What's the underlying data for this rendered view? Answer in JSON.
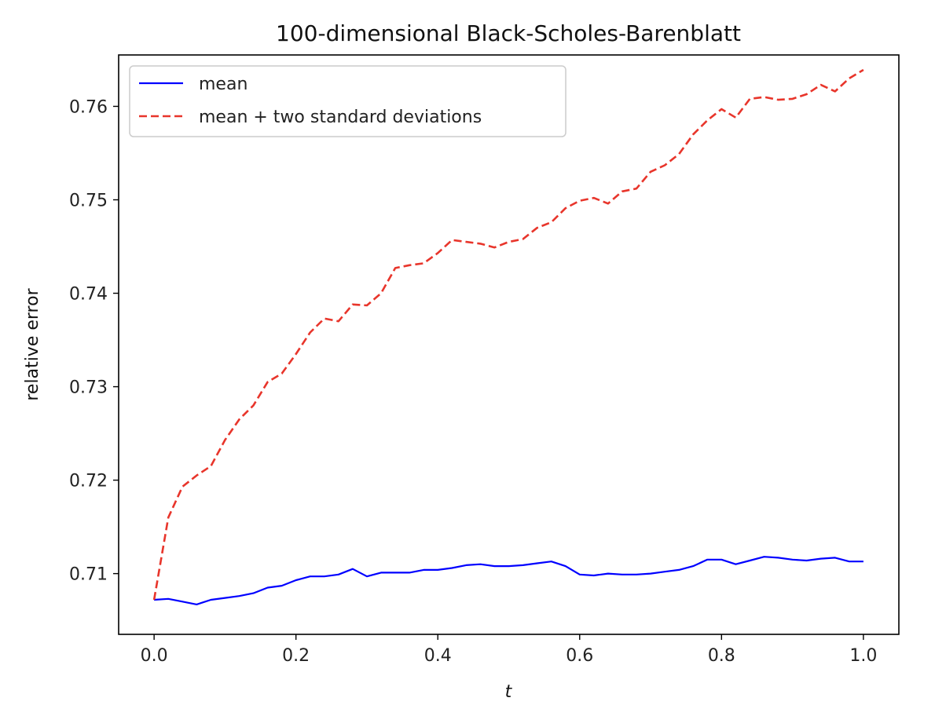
{
  "chart_data": {
    "type": "line",
    "title": "100-dimensional Black-Scholes-Barenblatt",
    "xlabel": "t",
    "ylabel": "relative error",
    "xlim": [
      -0.05,
      1.05
    ],
    "ylim": [
      0.7035,
      0.7655
    ],
    "xticks": [
      "0.0",
      "0.2",
      "0.4",
      "0.6",
      "0.8",
      "1.0"
    ],
    "yticks": [
      "0.71",
      "0.72",
      "0.73",
      "0.74",
      "0.75",
      "0.76"
    ],
    "xtick_values": [
      0.0,
      0.2,
      0.4,
      0.6,
      0.8,
      1.0
    ],
    "ytick_values": [
      0.71,
      0.72,
      0.73,
      0.74,
      0.75,
      0.76
    ],
    "grid": false,
    "legend_position": "top-left",
    "x": [
      0.0,
      0.02,
      0.04,
      0.06,
      0.08,
      0.1,
      0.12,
      0.14,
      0.16,
      0.18,
      0.2,
      0.22,
      0.24,
      0.26,
      0.28,
      0.3,
      0.32,
      0.34,
      0.36,
      0.38,
      0.4,
      0.42,
      0.44,
      0.46,
      0.48,
      0.5,
      0.52,
      0.54,
      0.56,
      0.58,
      0.6,
      0.62,
      0.64,
      0.66,
      0.68,
      0.7,
      0.72,
      0.74,
      0.76,
      0.78,
      0.8,
      0.82,
      0.84,
      0.86,
      0.88,
      0.9,
      0.92,
      0.94,
      0.96,
      0.98,
      1.0
    ],
    "series": [
      {
        "name": "mean",
        "color": "#0000ff",
        "style": "solid",
        "values": [
          0.7072,
          0.7073,
          0.707,
          0.7067,
          0.7072,
          0.7074,
          0.7076,
          0.7079,
          0.7085,
          0.7087,
          0.7093,
          0.7097,
          0.7097,
          0.7099,
          0.7105,
          0.7097,
          0.7101,
          0.7101,
          0.7101,
          0.7104,
          0.7104,
          0.7106,
          0.7109,
          0.711,
          0.7108,
          0.7108,
          0.7109,
          0.7111,
          0.7113,
          0.7108,
          0.7099,
          0.7098,
          0.71,
          0.7099,
          0.7099,
          0.71,
          0.7102,
          0.7104,
          0.7108,
          0.7115,
          0.7115,
          0.711,
          0.7114,
          0.7118,
          0.7117,
          0.7115,
          0.7114,
          0.7116,
          0.7117,
          0.7113,
          0.7113
        ]
      },
      {
        "name": "mean + two standard deviations",
        "color": "#e8352b",
        "style": "dashed",
        "values": [
          0.7072,
          0.716,
          0.7193,
          0.7205,
          0.7215,
          0.7243,
          0.7265,
          0.728,
          0.7305,
          0.7314,
          0.7335,
          0.7358,
          0.7373,
          0.737,
          0.7388,
          0.7387,
          0.74,
          0.7427,
          0.743,
          0.7432,
          0.7443,
          0.7457,
          0.7455,
          0.7453,
          0.7449,
          0.7455,
          0.7458,
          0.747,
          0.7476,
          0.7491,
          0.7499,
          0.7502,
          0.7496,
          0.7509,
          0.7512,
          0.753,
          0.7537,
          0.7549,
          0.757,
          0.7585,
          0.7597,
          0.7588,
          0.7608,
          0.761,
          0.7607,
          0.7608,
          0.7613,
          0.7623,
          0.7616,
          0.763,
          0.7639
        ]
      }
    ]
  }
}
